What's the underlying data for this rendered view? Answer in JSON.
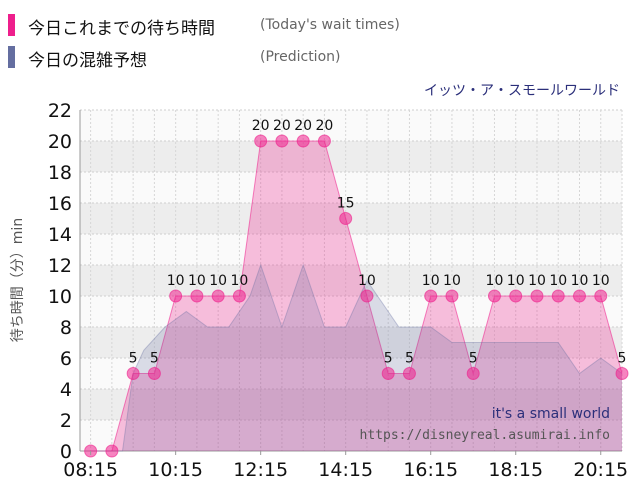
{
  "legend": {
    "today_label": "今日これまでの待ち時間",
    "today_sub": "(Today's wait times)",
    "prediction_label": "今日の混雑予想",
    "prediction_sub": "(Prediction)"
  },
  "attraction_name": "イッツ・ア・スモールワールド",
  "watermark": {
    "name": "it's a small world",
    "url": "https://disneyreal.asumirai.info"
  },
  "colors": {
    "today": "#ee1f8c",
    "prediction": "#646ea0"
  },
  "chart_data": {
    "type": "area",
    "ylabel": "待ち時間（分）min",
    "ylim": [
      0,
      22
    ],
    "yticks": [
      0,
      2,
      4,
      6,
      8,
      10,
      12,
      14,
      16,
      18,
      20,
      22
    ],
    "xlim": [
      "08:00",
      "20:45"
    ],
    "xticks": [
      "08:15",
      "10:15",
      "12:15",
      "14:15",
      "16:15",
      "18:15",
      "20:15"
    ],
    "grid": true,
    "series": [
      {
        "name": "今日これまでの待ち時間",
        "kind": "observed",
        "x": [
          "08:15",
          "08:45",
          "09:15",
          "09:45",
          "10:15",
          "10:45",
          "11:15",
          "11:45",
          "12:15",
          "12:45",
          "13:15",
          "13:45",
          "14:15",
          "14:45",
          "15:15",
          "15:45",
          "16:15",
          "16:45",
          "17:15",
          "17:45",
          "18:15",
          "18:45",
          "19:15",
          "19:45",
          "20:15",
          "20:45"
        ],
        "values": [
          0,
          0,
          5,
          5,
          10,
          10,
          10,
          10,
          20,
          20,
          20,
          20,
          15,
          10,
          5,
          5,
          10,
          10,
          5,
          10,
          10,
          10,
          10,
          10,
          10,
          5
        ],
        "labels": [
          "",
          "",
          "5",
          "5",
          "10",
          "10",
          "10",
          "10",
          "20",
          "20",
          "20",
          "20",
          "15",
          "10",
          "5",
          "5",
          "10",
          "10",
          "5",
          "10",
          "10",
          "10",
          "10",
          "10",
          "10",
          "5"
        ]
      },
      {
        "name": "今日の混雑予想",
        "kind": "prediction",
        "x": [
          "08:15",
          "08:40",
          "09:00",
          "09:15",
          "09:30",
          "10:00",
          "10:30",
          "11:00",
          "11:30",
          "12:00",
          "12:15",
          "12:45",
          "13:15",
          "13:45",
          "14:15",
          "14:45",
          "15:30",
          "16:15",
          "16:45",
          "17:30",
          "18:30",
          "19:15",
          "19:45",
          "20:15",
          "20:45"
        ],
        "values": [
          0,
          0,
          0,
          5,
          6.5,
          8,
          9,
          8,
          8,
          10,
          12,
          8,
          12,
          8,
          8,
          11,
          8,
          8,
          7,
          7,
          7,
          7,
          5,
          6,
          5
        ]
      }
    ]
  }
}
